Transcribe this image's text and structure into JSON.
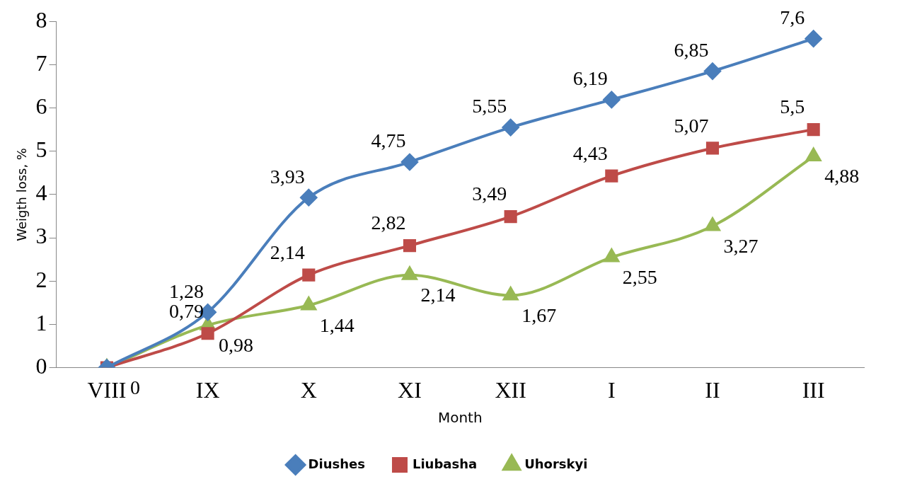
{
  "chart_data": {
    "type": "line",
    "xlabel": "Month",
    "ylabel": "Weigth loss, %",
    "categories": [
      "VIII",
      "IX",
      "X",
      "XI",
      "XII",
      "I",
      "II",
      "III"
    ],
    "series": [
      {
        "name": "Diushes",
        "color": "#4a7ebb",
        "marker": "diamond",
        "values": [
          0,
          1.28,
          3.93,
          4.75,
          5.55,
          6.19,
          6.85,
          7.6
        ],
        "value_labels": [
          null,
          "1,28",
          "3,93",
          "4,75",
          "5,55",
          "6,19",
          "6,85",
          "7,6"
        ]
      },
      {
        "name": "Liubasha",
        "color": "#be4b48",
        "marker": "square",
        "values": [
          0,
          0.79,
          2.14,
          2.82,
          3.49,
          4.43,
          5.07,
          5.5
        ],
        "value_labels": [
          null,
          "0,79",
          "2,14",
          "2,82",
          "3,49",
          "4,43",
          "5,07",
          "5,5"
        ]
      },
      {
        "name": "Uhorskyi",
        "color": "#98b954",
        "marker": "triangle",
        "values": [
          0,
          0.98,
          1.44,
          2.14,
          1.67,
          2.55,
          3.27,
          4.88
        ],
        "value_labels": [
          "0",
          "0,98",
          "1,44",
          "2,14",
          "1,67",
          "2,55",
          "3,27",
          "4,88"
        ]
      }
    ],
    "ylim": [
      0,
      8
    ],
    "yticks": [
      0,
      1,
      2,
      3,
      4,
      5,
      6,
      7,
      8
    ],
    "grid": false,
    "legend": "bottom"
  }
}
